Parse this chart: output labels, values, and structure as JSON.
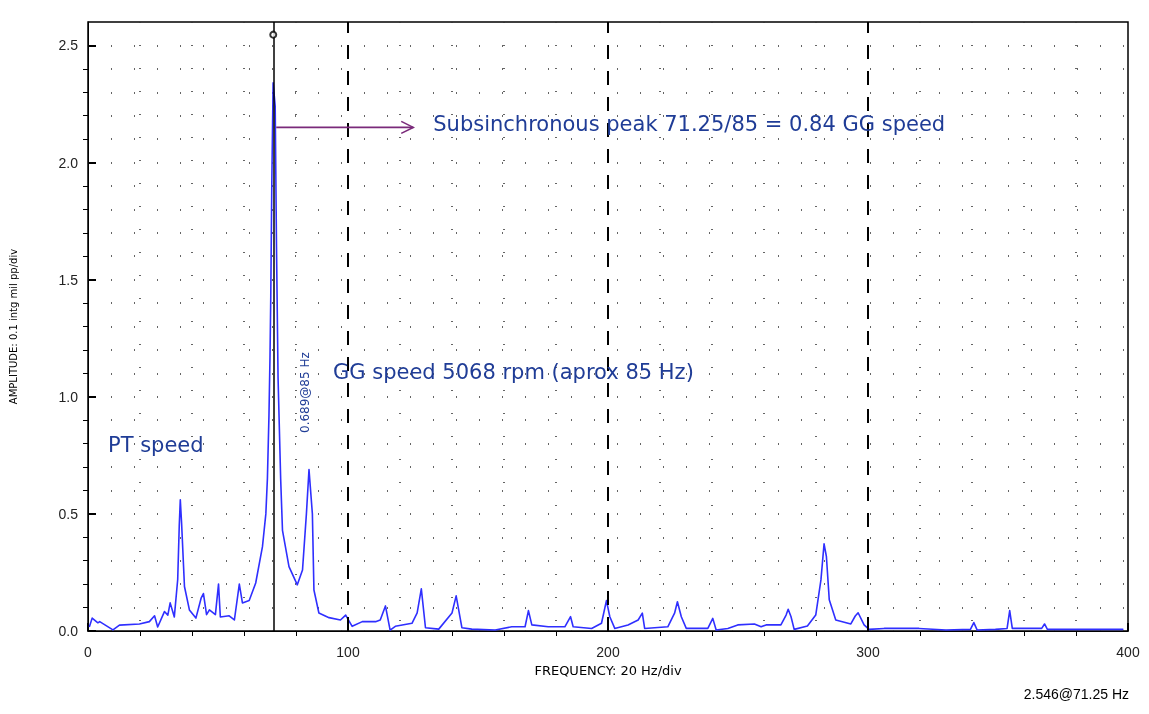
{
  "chart_data": {
    "type": "line",
    "xlabel": "FREQUENCY: 20 Hz/div",
    "ylabel": "AMPLITUDE: 0.1 intg mil pp/div",
    "xlim": [
      0,
      400
    ],
    "xticks": [
      0,
      100,
      200,
      300,
      400
    ],
    "ylim": [
      0,
      2.6
    ],
    "yticks": [
      {
        "value": 0,
        "label": "0.0"
      },
      {
        "value": 0.5,
        "label": "0.5"
      },
      {
        "value": 1,
        "label": "1.0"
      },
      {
        "value": 1.5,
        "label": "1.5"
      },
      {
        "value": 2,
        "label": "2.0"
      },
      {
        "value": 2.5,
        "label": "2.5"
      }
    ],
    "grid": true,
    "marker": "none",
    "line_style": "solid",
    "series": [
      {
        "color": "#2f2fff",
        "x": [
          0.6,
          1.6,
          3.8,
          4.5,
          9.6,
          12.1,
          19.8,
          23.6,
          25.6,
          26.8,
          29.4,
          30.7,
          31.6,
          33.2,
          34.5,
          35.1,
          35.5,
          36.0,
          37.1,
          39,
          41.5,
          43.5,
          44.4,
          45.6,
          46.7,
          49,
          50.2,
          50.9,
          54.3,
          56.3,
          58.2,
          59.4,
          62,
          64.5,
          67.1,
          68.4,
          69,
          69.6,
          70,
          70.3,
          70.7,
          71.2,
          72.0,
          72.5,
          73.1,
          74.1,
          74.8,
          77.3,
          80.5,
          82.5,
          84,
          85,
          86.3,
          86.9,
          88.8,
          92.7,
          97.1,
          99.1,
          101.6,
          105.5,
          110.6,
          112.4,
          114.4,
          116.2,
          118.2,
          124.6,
          126.6,
          128.2,
          129.8,
          134.9,
          140,
          141.6,
          143.8,
          147.6,
          156.6,
          163,
          168.1,
          169.4,
          170.7,
          177,
          183.4,
          185.6,
          186.6,
          193.7,
          197.5,
          199.4,
          200.7,
          202.6,
          207.7,
          211.6,
          213.2,
          214.1,
          223,
          225.6,
          226.7,
          228.2,
          230.1,
          238.4,
          240.3,
          241.6,
          246.1,
          249.9,
          256.3,
          258.9,
          260.8,
          266.5,
          268.5,
          269.3,
          270.4,
          271.6,
          276.7,
          279.9,
          281.9,
          283.1,
          284,
          285.1,
          287.6,
          293.4,
          295.1,
          296.2,
          298.5,
          300.4,
          306.2,
          319.6,
          330,
          339.4,
          340.7,
          342,
          349,
          353.5,
          354.5,
          355.5,
          366.8,
          367.9,
          369,
          381,
          398
        ],
        "values": [
          0.02,
          0.055,
          0.035,
          0.04,
          0.005,
          0.025,
          0.03,
          0.04,
          0.065,
          0.017,
          0.083,
          0.068,
          0.12,
          0.06,
          0.22,
          0.45,
          0.56,
          0.46,
          0.19,
          0.09,
          0.055,
          0.14,
          0.16,
          0.07,
          0.09,
          0.07,
          0.2,
          0.06,
          0.065,
          0.047,
          0.2,
          0.12,
          0.13,
          0.205,
          0.36,
          0.5,
          0.65,
          0.92,
          1.17,
          1.43,
          1.92,
          2.34,
          2.24,
          1.64,
          1.08,
          0.65,
          0.43,
          0.275,
          0.197,
          0.26,
          0.5,
          0.689,
          0.5,
          0.175,
          0.077,
          0.057,
          0.047,
          0.068,
          0.02,
          0.04,
          0.04,
          0.047,
          0.107,
          0.004,
          0.02,
          0.033,
          0.077,
          0.18,
          0.014,
          0.008,
          0.077,
          0.15,
          0.014,
          0.008,
          0.004,
          0.018,
          0.018,
          0.087,
          0.026,
          0.018,
          0.018,
          0.061,
          0.018,
          0.011,
          0.033,
          0.13,
          0.061,
          0.011,
          0.026,
          0.047,
          0.076,
          0.011,
          0.018,
          0.076,
          0.125,
          0.061,
          0.011,
          0.011,
          0.054,
          0.004,
          0.011,
          0.026,
          0.03,
          0.018,
          0.026,
          0.026,
          0.068,
          0.093,
          0.061,
          0.007,
          0.021,
          0.068,
          0.218,
          0.372,
          0.318,
          0.133,
          0.047,
          0.03,
          0.064,
          0.078,
          0.026,
          0.007,
          0.011,
          0.011,
          0.004,
          0.007,
          0.036,
          0.004,
          0.007,
          0.011,
          0.087,
          0.011,
          0.011,
          0.03,
          0.007,
          0.007,
          0.007
        ]
      },
      {
        "type": "scatter",
        "color": "#000000",
        "marker": "circle",
        "x": [
          71.25
        ],
        "values": [
          2.546
        ]
      }
    ],
    "ref_lines": [
      {
        "axis": "x",
        "value": 71.25,
        "color": "#000000",
        "line_style": "solid"
      },
      {
        "axis": "x",
        "value": 100,
        "color": "#000000",
        "line_style": "dashed"
      },
      {
        "axis": "x",
        "value": 200,
        "color": "#000000",
        "line_style": "dashed"
      },
      {
        "axis": "x",
        "value": 300,
        "color": "#000000",
        "line_style": "dashed"
      }
    ],
    "annotations": [
      {
        "text": "Subsinchronous peak 71.25/85 = 0.84 GG speed",
        "x": 71.25,
        "y": 2.15
      },
      "0.689@85 Hz",
      "GG speed 5068 rpm (aprox 85 Hz)",
      "PT speed",
      "2.546@71.25 Hz"
    ]
  }
}
